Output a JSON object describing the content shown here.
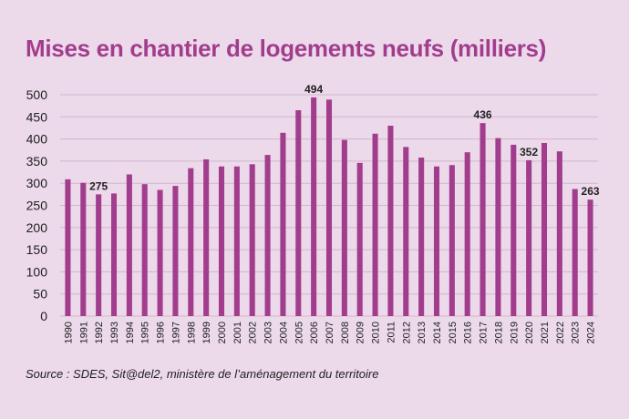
{
  "title": "Mises en chantier de logements neufs (milliers)",
  "source": "Source : SDES, Sit@del2, ministère de l’aménagement du territoire",
  "colors": {
    "bar": "#a23d8d",
    "grid": "#d2b6cf",
    "background": "#ecd9ea",
    "title": "#a23d8d"
  },
  "chart_data": {
    "type": "bar",
    "title": "Mises en chantier de logements neufs (milliers)",
    "xlabel": "",
    "ylabel": "",
    "ylim": [
      0,
      500
    ],
    "yticks": [
      0,
      50,
      100,
      150,
      200,
      250,
      300,
      350,
      400,
      450,
      500
    ],
    "grid": true,
    "legend": "none",
    "categories": [
      "1990",
      "1991",
      "1992",
      "1993",
      "1994",
      "1995",
      "1996",
      "1997",
      "1998",
      "1999",
      "2000",
      "2001",
      "2002",
      "2003",
      "2004",
      "2005",
      "2006",
      "2007",
      "2008",
      "2009",
      "2010",
      "2011",
      "2012",
      "2013",
      "2014",
      "2015",
      "2016",
      "2017",
      "2018",
      "2019",
      "2020",
      "2021",
      "2022",
      "2023",
      "2024"
    ],
    "values": [
      309,
      301,
      275,
      277,
      320,
      298,
      285,
      294,
      334,
      354,
      338,
      338,
      343,
      364,
      414,
      465,
      494,
      489,
      398,
      346,
      412,
      430,
      382,
      358,
      338,
      341,
      370,
      436,
      402,
      387,
      352,
      391,
      372,
      287,
      263
    ],
    "data_labels": [
      {
        "category": "1992",
        "value": 275,
        "text": "275"
      },
      {
        "category": "2006",
        "value": 494,
        "text": "494"
      },
      {
        "category": "2017",
        "value": 436,
        "text": "436"
      },
      {
        "category": "2020",
        "value": 352,
        "text": "352"
      },
      {
        "category": "2024",
        "value": 263,
        "text": "263"
      }
    ]
  }
}
